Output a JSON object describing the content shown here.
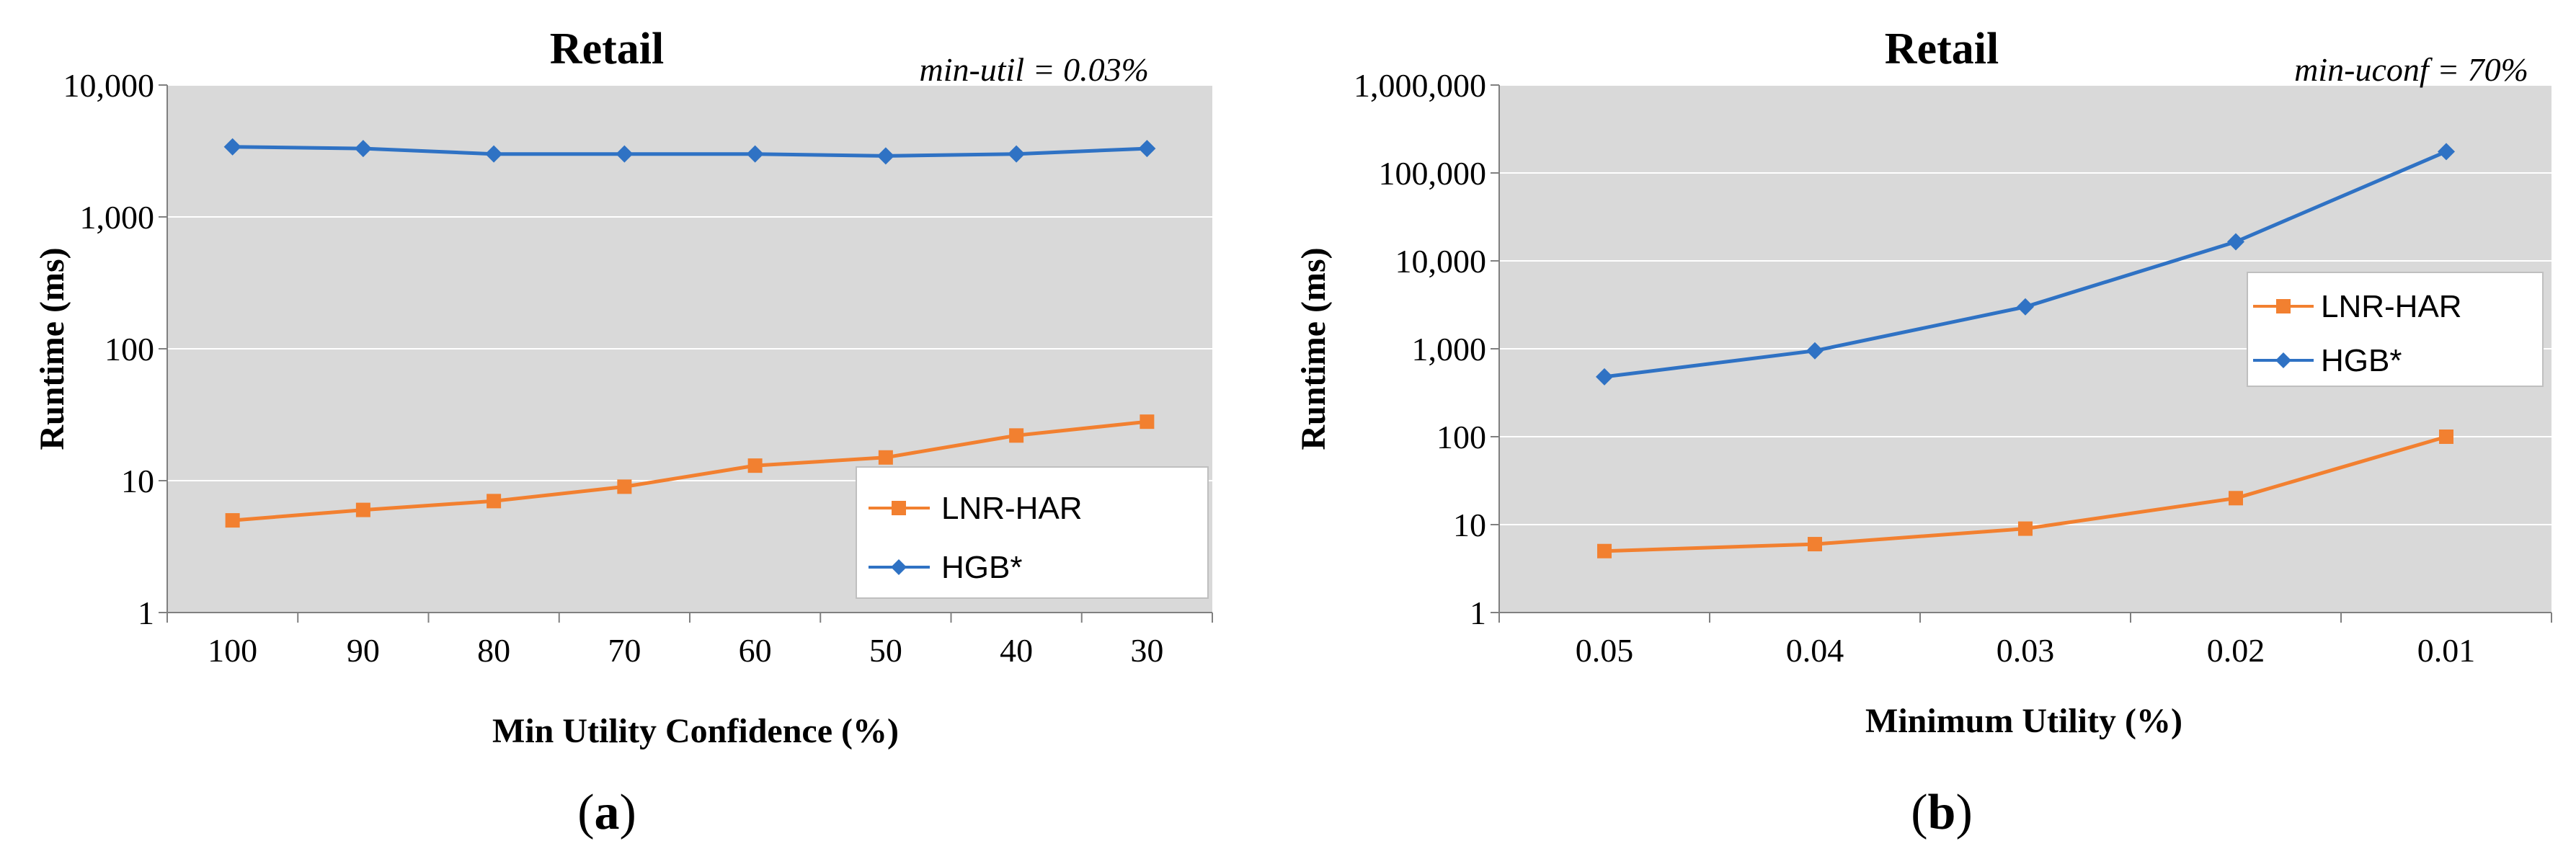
{
  "chart_data": [
    {
      "id": "a",
      "type": "line",
      "title": "Retail",
      "annotation": "min-util = 0.03%",
      "xlabel": "Min Utility Confidence (%)",
      "ylabel": "Runtime (ms)",
      "yscale": "log",
      "ylim": [
        1,
        10000
      ],
      "yticks": [
        1,
        10,
        100,
        1000,
        10000
      ],
      "ytick_labels": [
        "1",
        "10",
        "100",
        "1,000",
        "10,000"
      ],
      "categories": [
        "100",
        "90",
        "80",
        "70",
        "60",
        "50",
        "40",
        "30"
      ],
      "legend_position": "lower-right",
      "series": [
        {
          "name": "LNR-HAR",
          "color": "#f28030",
          "marker": "square",
          "values": [
            5,
            6,
            7,
            9,
            13,
            15,
            22,
            28
          ]
        },
        {
          "name": "HGB*",
          "color": "#2f72c4",
          "marker": "diamond",
          "values": [
            3400,
            3300,
            3000,
            3000,
            3000,
            2900,
            3000,
            3300
          ]
        }
      ],
      "caption": {
        "open": "(",
        "letter": "a",
        "close": ")"
      }
    },
    {
      "id": "b",
      "type": "line",
      "title": "Retail",
      "annotation": "min-uconf = 70%",
      "xlabel": "Minimum Utility (%)",
      "ylabel": "Runtime (ms)",
      "yscale": "log",
      "ylim": [
        1,
        1000000
      ],
      "yticks": [
        1,
        10,
        100,
        1000,
        10000,
        100000,
        1000000
      ],
      "ytick_labels": [
        "1",
        "10",
        "100",
        "1,000",
        "10,000",
        "100,000",
        "1,000,000"
      ],
      "categories": [
        "0.05",
        "0.04",
        "0.03",
        "0.02",
        "0.01"
      ],
      "legend_position": "right",
      "series": [
        {
          "name": "LNR-HAR",
          "color": "#f28030",
          "marker": "square",
          "values": [
            5,
            6,
            9,
            20,
            100
          ]
        },
        {
          "name": "HGB*",
          "color": "#2f72c4",
          "marker": "diamond",
          "values": [
            480,
            950,
            3000,
            16500,
            175000
          ]
        }
      ],
      "caption": {
        "open": "(",
        "letter": "b",
        "close": ")"
      }
    }
  ]
}
